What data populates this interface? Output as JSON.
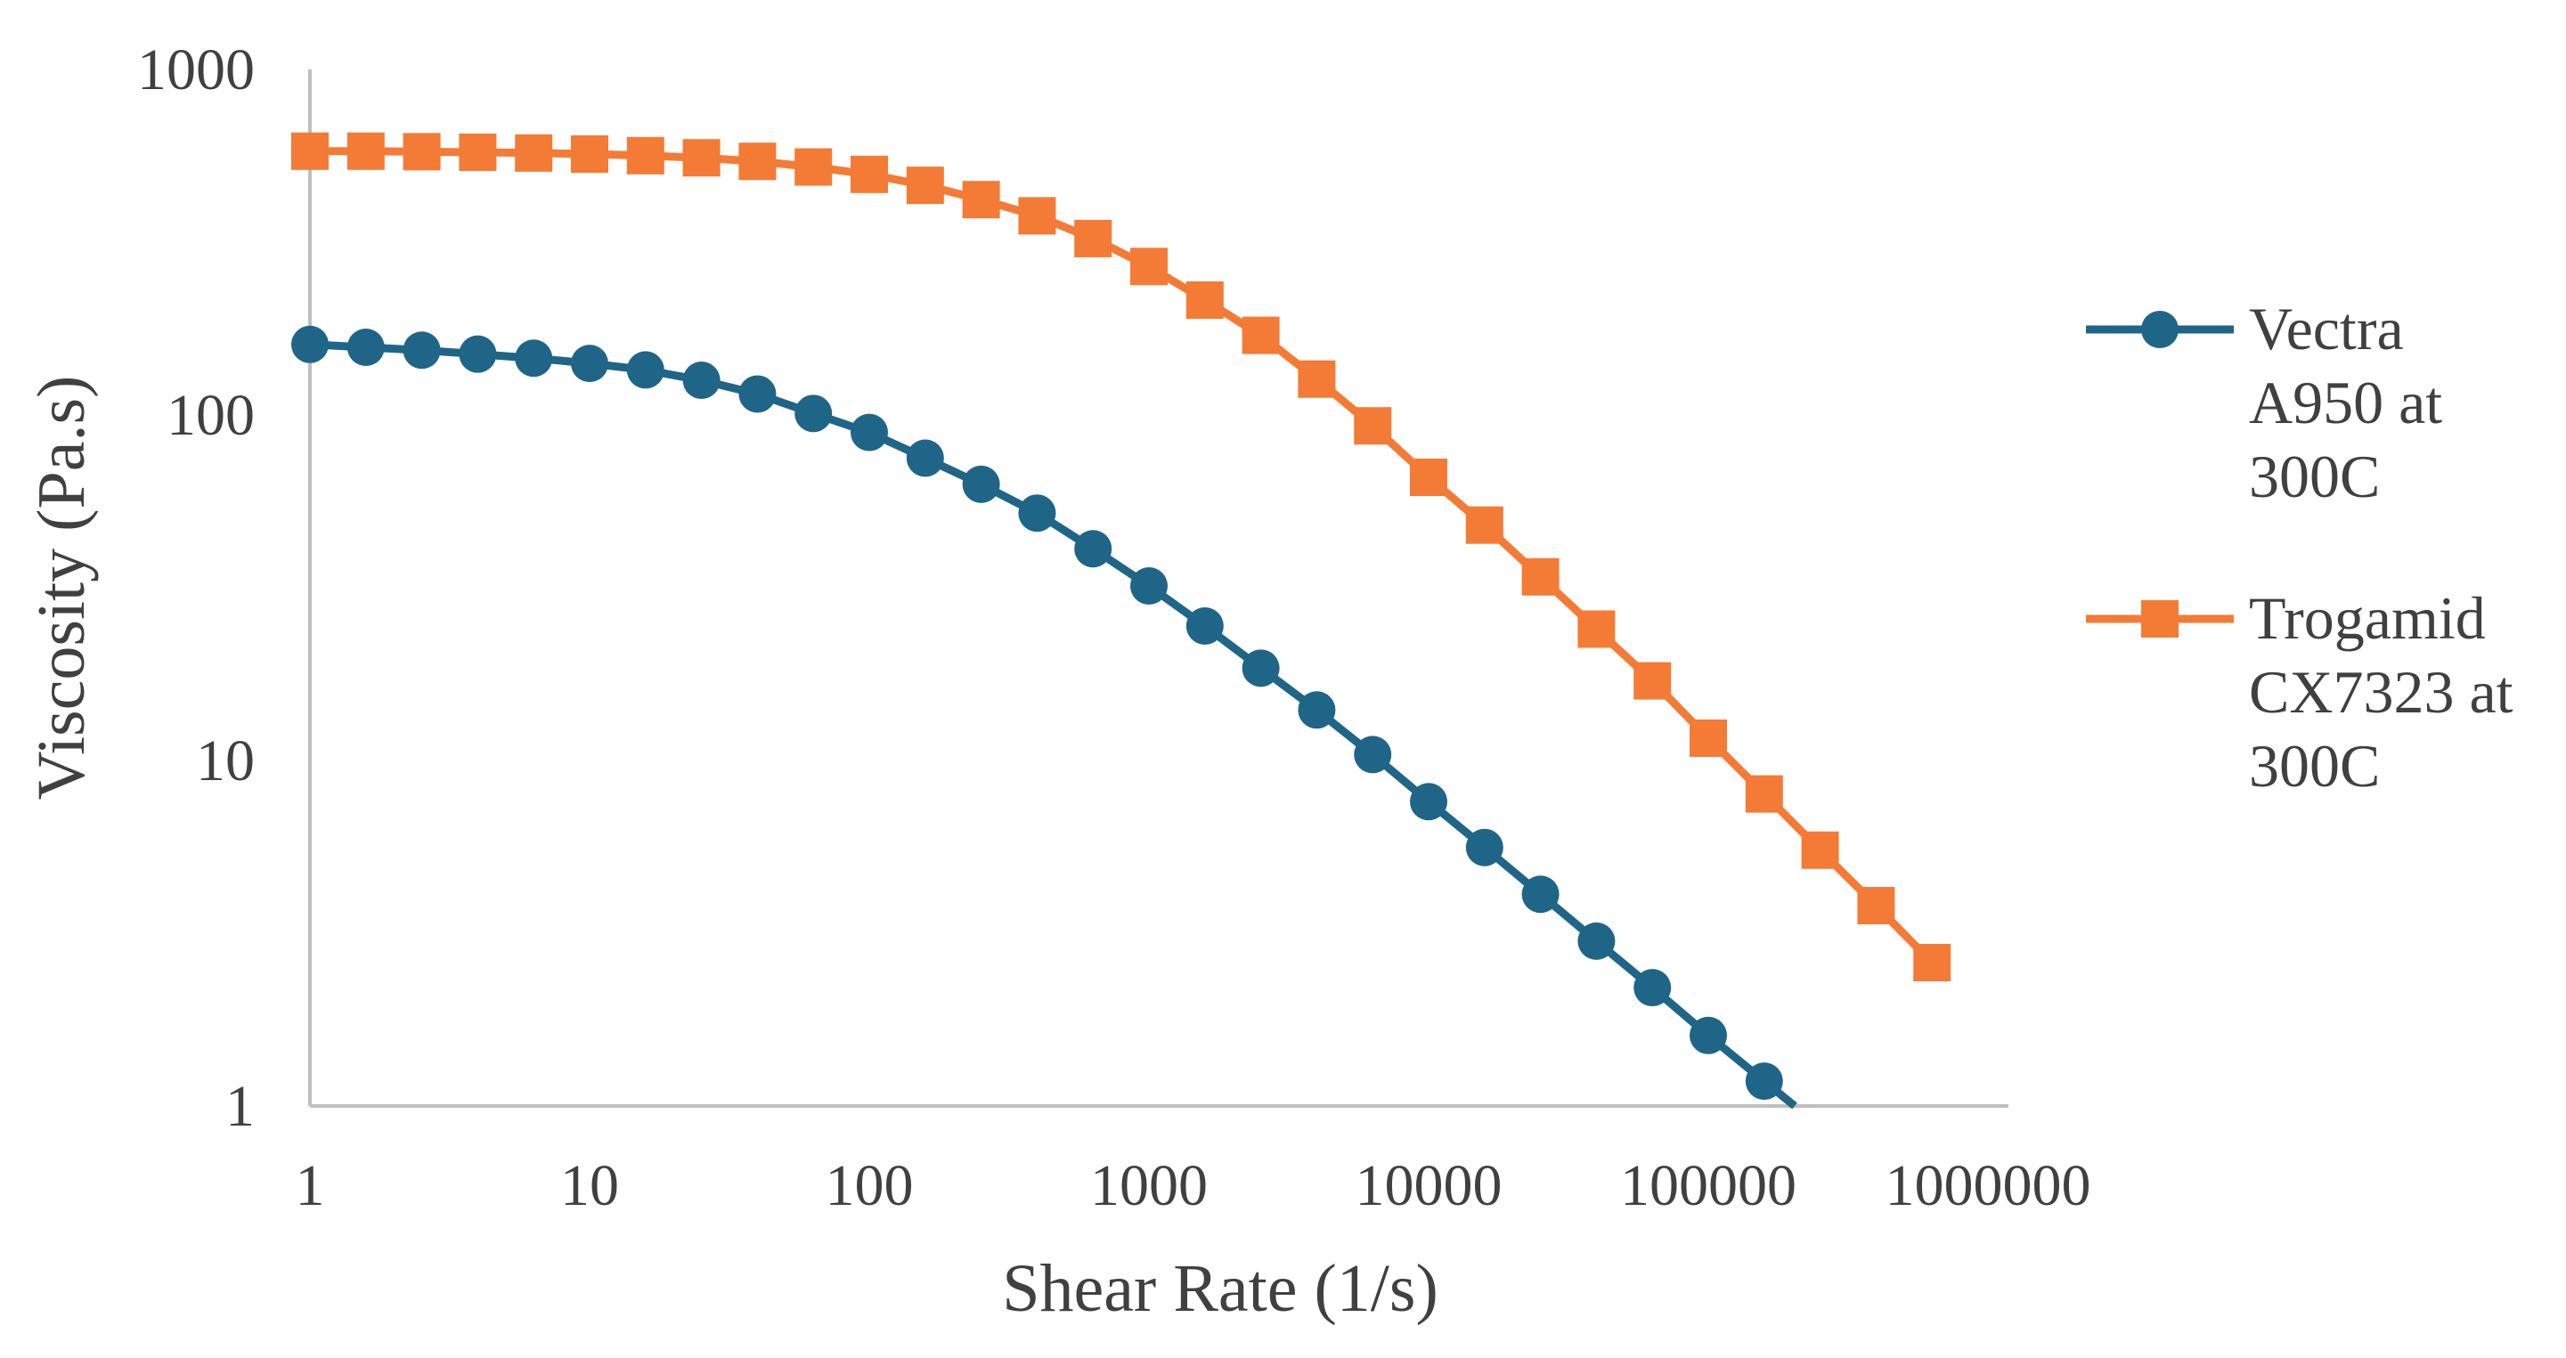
{
  "chart_data": {
    "type": "line",
    "title": "",
    "xlabel": "Shear Rate (1/s)",
    "ylabel": "Viscosity (Pa.s)",
    "xscale": "log",
    "yscale": "log",
    "xlim": [
      1,
      1000000
    ],
    "ylim": [
      1,
      1000
    ],
    "grid": false,
    "legend_position": "right",
    "x_ticks": [
      "1",
      "10",
      "100",
      "1000",
      "10000",
      "100000",
      "1000000"
    ],
    "y_ticks": [
      "1",
      "10",
      "100",
      "1000"
    ],
    "series": [
      {
        "name": "Vectra A950 at 300C",
        "legend_lines": [
          "Vectra",
          "A950 at",
          "300C"
        ],
        "color": "#1f6587",
        "marker": "circle",
        "x": [
          1,
          1.585,
          2.512,
          3.981,
          6.31,
          10,
          15.85,
          25.12,
          39.81,
          63.1,
          100,
          158.5,
          251.2,
          398.1,
          631,
          1000,
          1585,
          2512,
          3981,
          6310,
          10000,
          15850,
          25120,
          39810,
          63100,
          100000,
          158500
        ],
        "values": [
          160,
          157,
          154,
          150,
          146,
          141,
          135,
          126,
          115,
          101,
          89,
          75,
          63,
          52,
          41,
          32,
          24.5,
          18.5,
          14,
          10.4,
          7.6,
          5.6,
          4.1,
          3.0,
          2.2,
          1.6,
          1.18
        ]
      },
      {
        "name": "Trogamid CX7323 at 300C",
        "legend_lines": [
          "Trogamid",
          "CX7323 at",
          "300C"
        ],
        "color": "#f47b36",
        "marker": "square",
        "x": [
          1,
          1.585,
          2.512,
          3.981,
          6.31,
          10,
          15.85,
          25.12,
          39.81,
          63.1,
          100,
          158.5,
          251.2,
          398.1,
          631,
          1000,
          1585,
          2512,
          3981,
          6310,
          10000,
          15850,
          25120,
          39810,
          63100,
          100000,
          158500,
          251200,
          398100,
          631000
        ],
        "values": [
          580,
          580,
          578,
          576,
          573,
          569,
          563,
          555,
          542,
          522,
          497,
          462,
          420,
          377,
          324,
          269,
          215,
          170,
          127,
          93,
          66,
          48,
          34,
          24,
          17,
          11.6,
          8.0,
          5.5,
          3.8,
          2.6
        ]
      }
    ]
  }
}
